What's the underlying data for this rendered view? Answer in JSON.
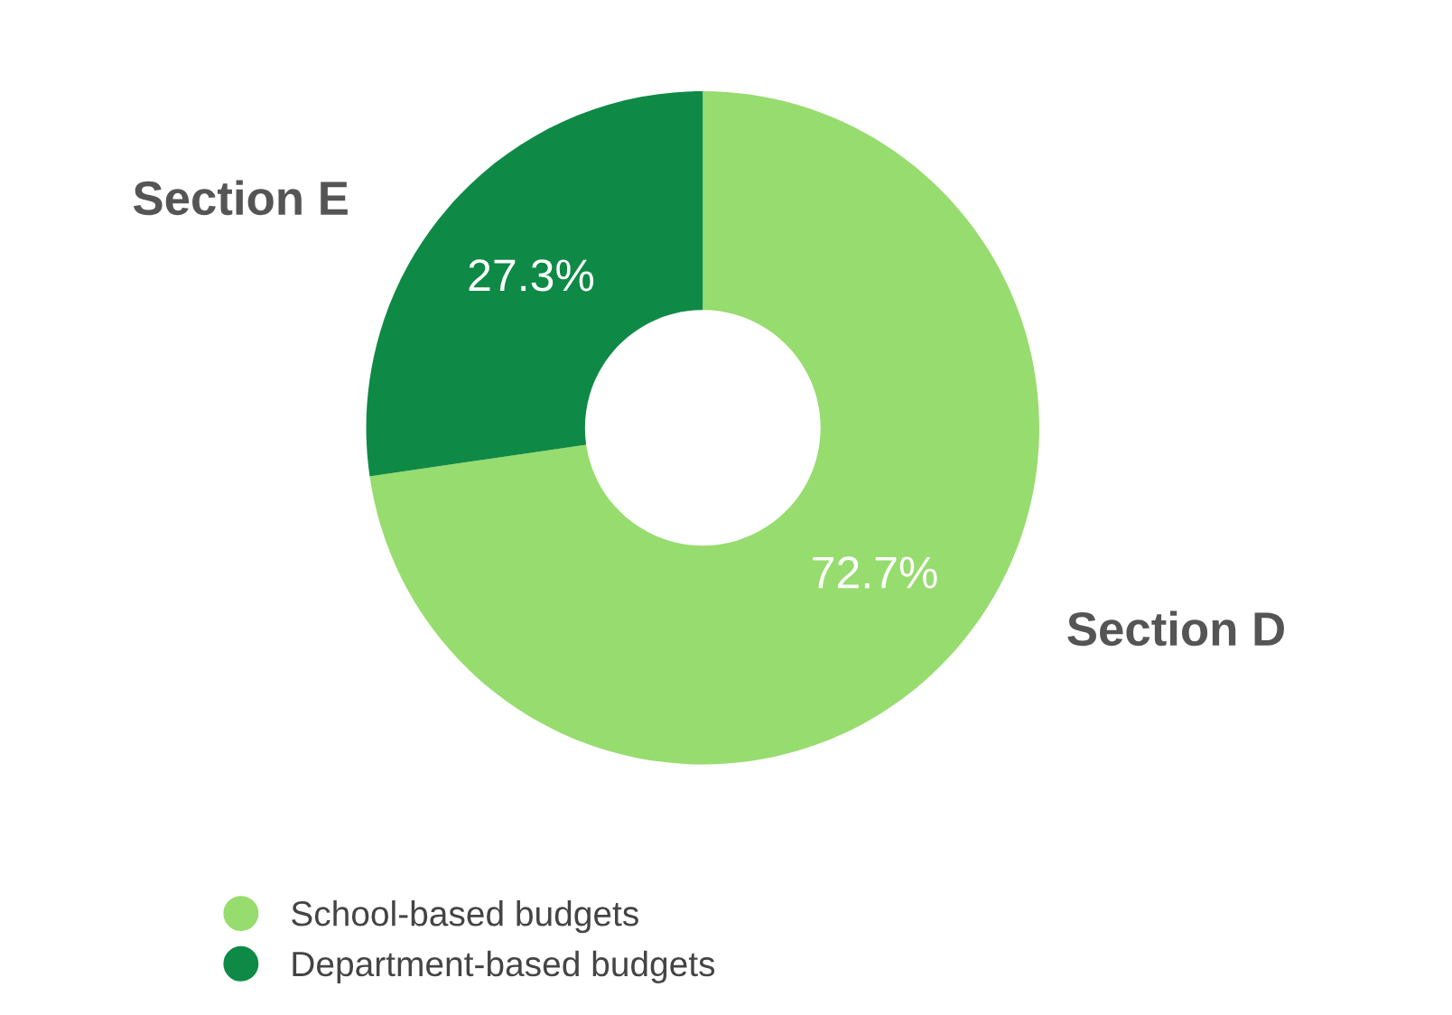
{
  "chart_data": {
    "type": "donut",
    "categories": [
      "School-based budgets",
      "Department-based budgets"
    ],
    "values": [
      72.7,
      27.3
    ],
    "colors": [
      "#97dc6e",
      "#0e8a46"
    ],
    "value_labels": [
      "72.7%",
      "27.3%"
    ],
    "annotations": [
      "Section D",
      "Section E"
    ],
    "legend": "bottom"
  }
}
